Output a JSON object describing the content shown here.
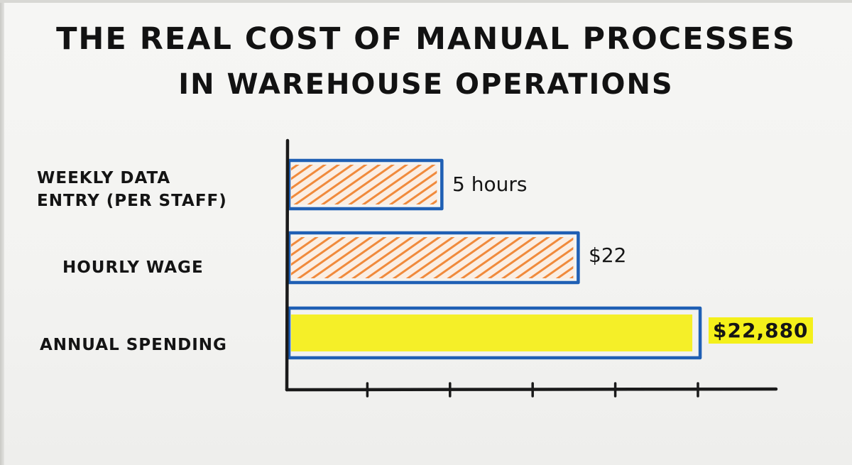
{
  "title": {
    "line1": "THE REAL COST OF MANUAL PROCESSES",
    "line2": "IN WAREHOUSE OPERATIONS"
  },
  "colors": {
    "bar_outline": "#1f5fb4",
    "hatch_orange": "#f08a3c",
    "highlight_yellow": "#f4ee1c",
    "marker_black": "#1a1a1a"
  },
  "chart_data": {
    "type": "bar",
    "orientation": "horizontal",
    "categories": [
      "WEEKLY DATA ENTRY (PER STAFF)",
      "HOURLY WAGE",
      "ANNUAL SPENDING"
    ],
    "category_lines": [
      [
        "WEEKLY DATA",
        "ENTRY (PER STAFF)"
      ],
      [
        "HOURLY WAGE"
      ],
      [
        "ANNUAL SPENDING"
      ]
    ],
    "values": [
      5,
      22,
      22880
    ],
    "value_labels": [
      "5 hours",
      "$22",
      "$22,880"
    ],
    "relative_bar_lengths": [
      0.37,
      0.7,
      0.995
    ],
    "bar_fill": [
      "orange-hatch",
      "orange-hatch",
      "yellow-highlight"
    ],
    "x_ticks": 5,
    "title": "THE REAL COST OF MANUAL PROCESSES IN WAREHOUSE OPERATIONS",
    "xlabel": "",
    "ylabel": "",
    "grid": false
  }
}
